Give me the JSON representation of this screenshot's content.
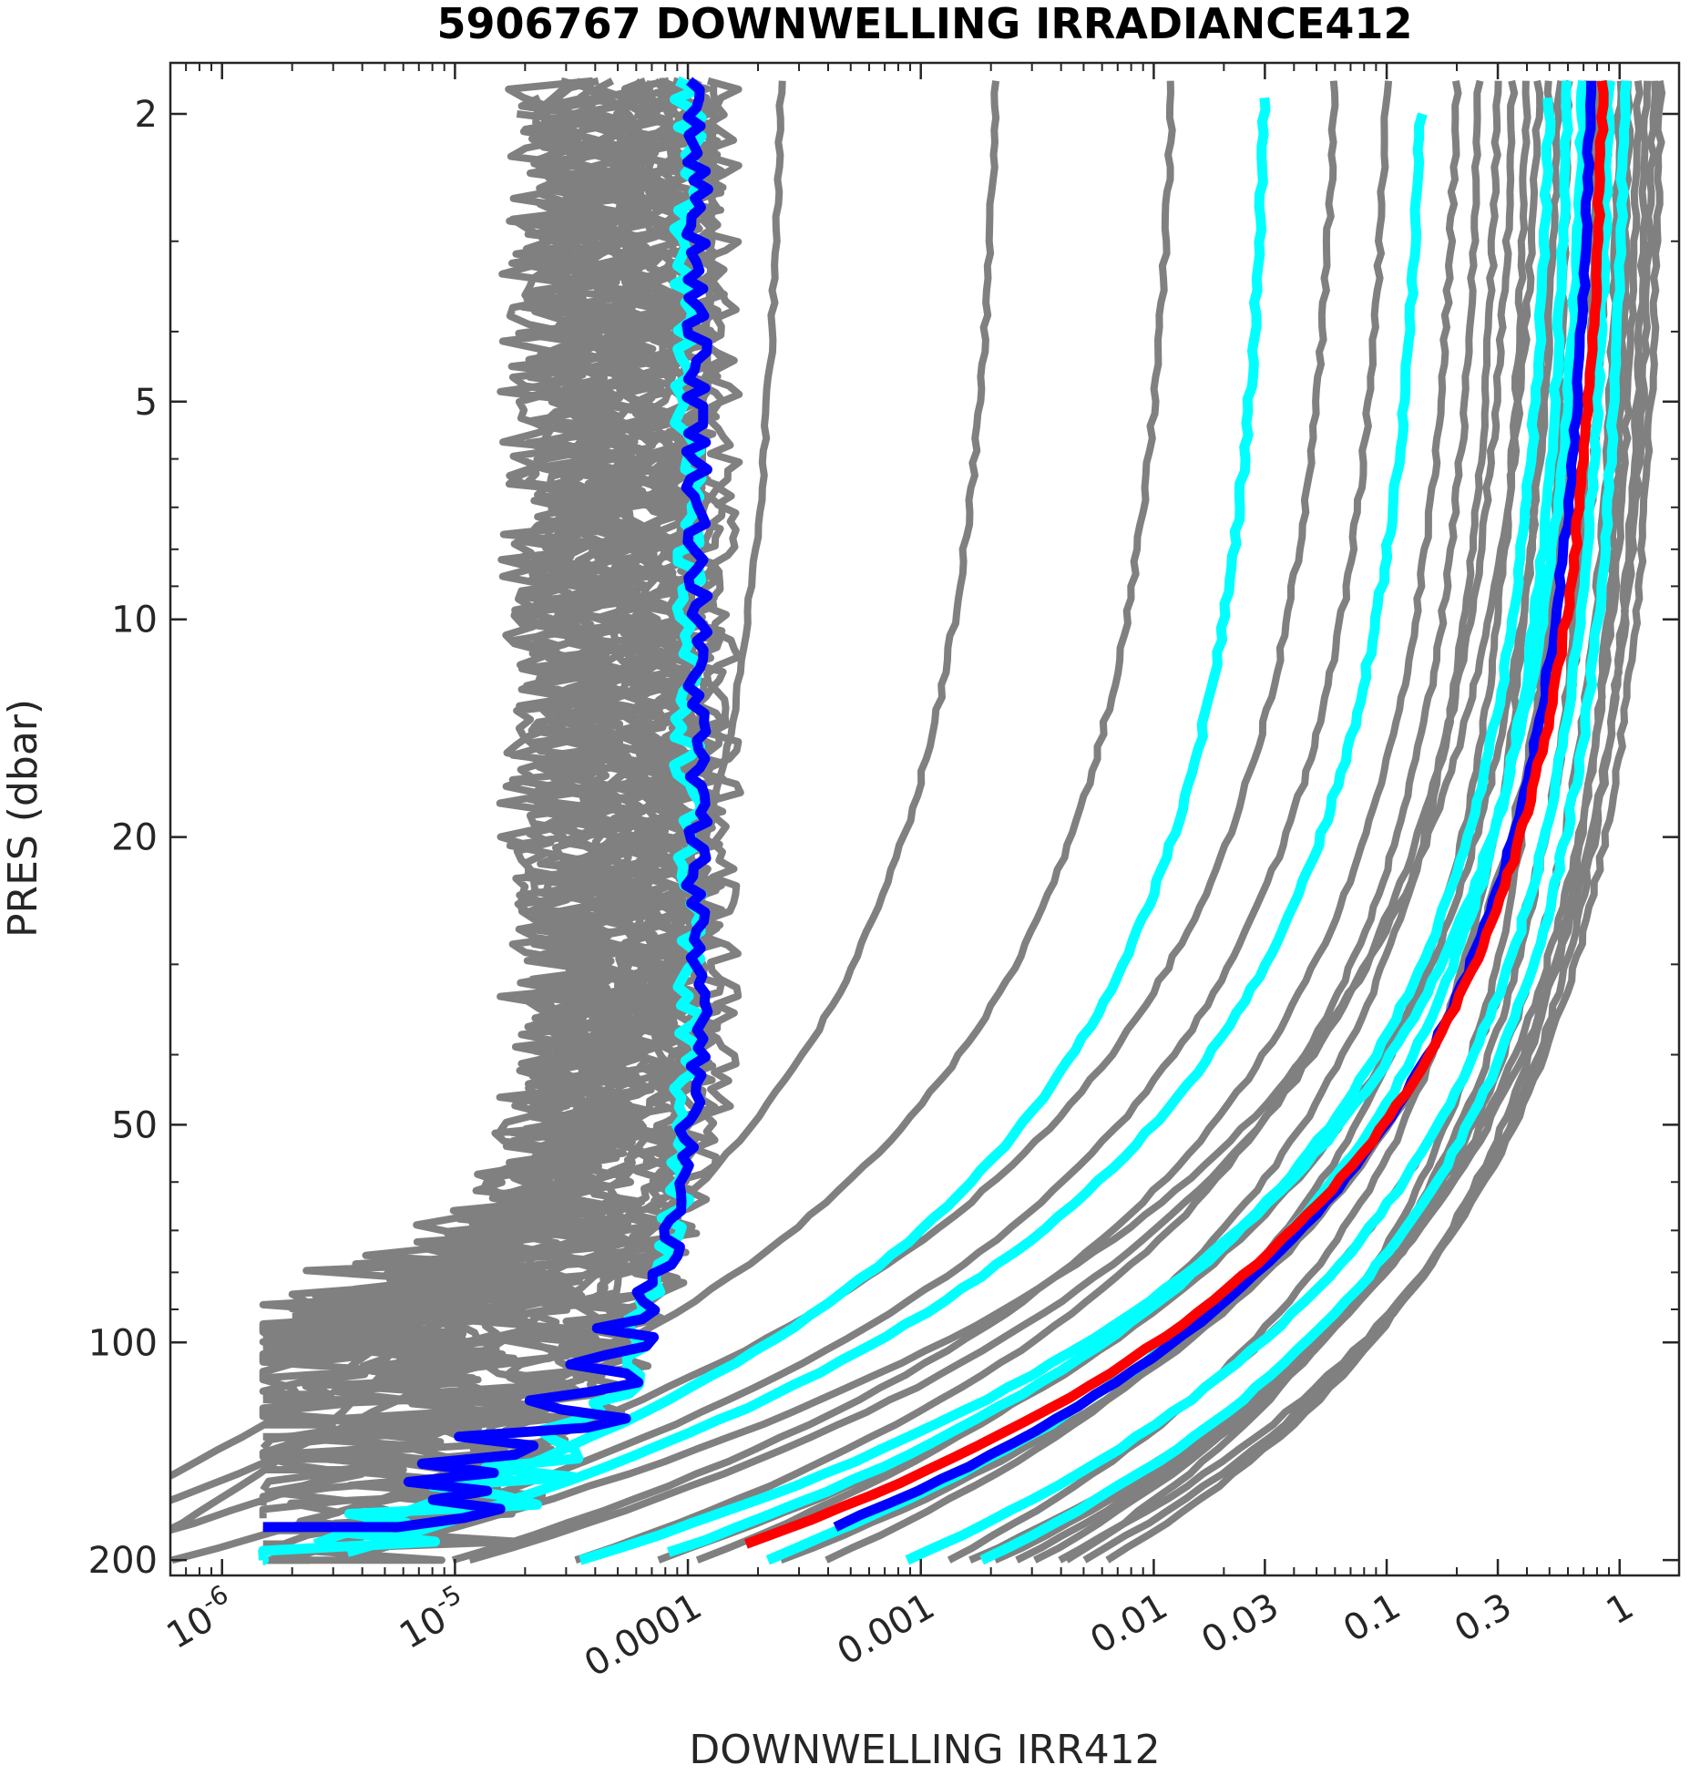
{
  "chart_data": {
    "type": "line",
    "title": "5906767  DOWNWELLING IRRADIANCE412",
    "xlabel": "DOWNWELLING IRR412",
    "ylabel": "PRES (dbar)",
    "x_scale": "log",
    "y_scale": "log",
    "y_reversed": true,
    "xlim": [
      6e-07,
      1.8
    ],
    "ylim": [
      1.7,
      210
    ],
    "grid": false,
    "x_ticks": [
      {
        "value": 1e-06,
        "base": "10",
        "exp": "-6"
      },
      {
        "value": 1e-05,
        "base": "10",
        "exp": "-5"
      },
      {
        "value": 0.0001,
        "label": "0.0001"
      },
      {
        "value": 0.001,
        "label": "0.001"
      },
      {
        "value": 0.01,
        "label": "0.01"
      },
      {
        "value": 0.03,
        "label": "0.03"
      },
      {
        "value": 0.1,
        "label": "0.1"
      },
      {
        "value": 0.3,
        "label": "0.3"
      },
      {
        "value": 1,
        "label": "1"
      }
    ],
    "y_ticks": [
      {
        "value": 2,
        "label": "2"
      },
      {
        "value": 5,
        "label": "5"
      },
      {
        "value": 10,
        "label": "10"
      },
      {
        "value": 20,
        "label": "20"
      },
      {
        "value": 50,
        "label": "50"
      },
      {
        "value": 100,
        "label": "100"
      },
      {
        "value": 200,
        "label": "200"
      }
    ],
    "series": [
      {
        "color": "#808080",
        "kind": "noise",
        "x0": 6e-05,
        "p0": 1.8,
        "pmax": 105,
        "xfloor": 1.5e-06,
        "jit": 0.25
      },
      {
        "color": "#808080",
        "kind": "noise",
        "x0": 5.5e-05,
        "p0": 1.8,
        "pmax": 100,
        "xfloor": 1.5e-06,
        "jit": 0.28
      },
      {
        "color": "#808080",
        "kind": "noise",
        "x0": 5e-05,
        "p0": 1.8,
        "pmax": 98,
        "xfloor": 1.5e-06,
        "jit": 0.3
      },
      {
        "color": "#808080",
        "kind": "noise",
        "x0": 4.5e-05,
        "p0": 1.9,
        "pmax": 92,
        "xfloor": 2e-06,
        "jit": 0.3
      },
      {
        "color": "#808080",
        "kind": "noise",
        "x0": 4e-05,
        "p0": 1.8,
        "pmax": 120,
        "xfloor": 1.5e-06,
        "jit": 0.32
      },
      {
        "color": "#808080",
        "kind": "noise",
        "x0": 3.5e-05,
        "p0": 1.9,
        "pmax": 112,
        "xfloor": 1.5e-06,
        "jit": 0.34
      },
      {
        "color": "#808080",
        "kind": "noise",
        "x0": 3e-05,
        "p0": 1.8,
        "pmax": 110,
        "xfloor": 1.5e-06,
        "jit": 0.36
      },
      {
        "color": "#808080",
        "kind": "noise",
        "x0": 2.7e-05,
        "p0": 1.9,
        "pmax": 125,
        "xfloor": 1.5e-06,
        "jit": 0.4
      },
      {
        "color": "#808080",
        "kind": "noise",
        "x0": 2.5e-05,
        "p0": 1.8,
        "pmax": 130,
        "xfloor": 1.5e-06,
        "jit": 0.42
      },
      {
        "color": "#808080",
        "kind": "noise",
        "x0": 6.5e-05,
        "p0": 1.8,
        "pmax": 102,
        "xfloor": 1.5e-06,
        "jit": 0.22
      },
      {
        "color": "#808080",
        "kind": "noise",
        "x0": 7e-05,
        "p0": 1.8,
        "pmax": 96,
        "xfloor": 1.5e-06,
        "jit": 0.2
      },
      {
        "color": "#808080",
        "kind": "noise",
        "x0": 8e-05,
        "p0": 1.9,
        "pmax": 90,
        "xfloor": 2e-06,
        "jit": 0.2
      },
      {
        "color": "#808080",
        "kind": "noise",
        "x0": 9e-05,
        "p0": 1.8,
        "pmax": 95,
        "xfloor": 2e-06,
        "jit": 0.18
      },
      {
        "color": "#808080",
        "kind": "noise",
        "x0": 0.0001,
        "p0": 1.8,
        "pmax": 105,
        "xfloor": 1.5e-06,
        "jit": 0.18
      },
      {
        "color": "#808080",
        "kind": "noise",
        "x0": 0.00012,
        "p0": 1.8,
        "pmax": 118,
        "xfloor": 1.5e-06,
        "jit": 0.16
      },
      {
        "color": "#808080",
        "kind": "noise",
        "x0": 0.00014,
        "p0": 1.8,
        "pmax": 135,
        "xfloor": 1.5e-06,
        "jit": 0.16
      },
      {
        "color": "#808080",
        "kind": "noise",
        "x0": 5e-05,
        "p0": 1.8,
        "pmax": 140,
        "xfloor": 1.5e-06,
        "jit": 0.3
      },
      {
        "color": "#808080",
        "kind": "noise",
        "x0": 4e-05,
        "p0": 1.9,
        "pmax": 150,
        "xfloor": 1.5e-06,
        "jit": 0.3
      },
      {
        "color": "#808080",
        "kind": "noise",
        "x0": 3.2e-05,
        "p0": 1.8,
        "pmax": 160,
        "xfloor": 1.5e-06,
        "jit": 0.35
      },
      {
        "color": "#808080",
        "kind": "noise",
        "x0": 2.6e-05,
        "p0": 2.0,
        "pmax": 175,
        "xfloor": 1.5e-06,
        "jit": 0.35
      },
      {
        "color": "#808080",
        "kind": "noise",
        "x0": 6e-05,
        "p0": 1.8,
        "pmax": 190,
        "xfloor": 1.5e-06,
        "jit": 0.25
      },
      {
        "color": "#808080",
        "kind": "noise",
        "x0": 8.5e-05,
        "p0": 1.8,
        "pmax": 200,
        "xfloor": 1.5e-06,
        "jit": 0.22
      },
      {
        "color": "#808080",
        "kind": "noise",
        "x0": 0.00011,
        "p0": 1.8,
        "pmax": 145,
        "xfloor": 1.5e-06,
        "jit": 0.2
      },
      {
        "color": "#808080",
        "kind": "noise",
        "x0": 7.5e-05,
        "p0": 1.9,
        "pmax": 168,
        "xfloor": 1.5e-06,
        "jit": 0.24
      },
      {
        "color": "#808080",
        "kind": "noise",
        "x0": 3.8e-05,
        "p0": 1.8,
        "pmax": 182,
        "xfloor": 1.5e-06,
        "jit": 0.3
      },
      {
        "color": "#808080",
        "kind": "noise",
        "x0": 9.5e-05,
        "p0": 1.8,
        "pmax": 200,
        "xfloor": 1.5e-06,
        "jit": 0.2
      },
      {
        "color": "#808080",
        "kind": "smooth",
        "x0": 0.00013,
        "p0": 1.8,
        "k": 0.03,
        "pmax": 200
      },
      {
        "color": "#808080",
        "kind": "smooth",
        "x0": 0.00025,
        "p0": 1.8,
        "k": 0.04,
        "pmax": 200
      },
      {
        "color": "#808080",
        "kind": "smooth",
        "x0": 0.0021,
        "p0": 1.8,
        "k": 0.05,
        "pmax": 200
      },
      {
        "color": "#808080",
        "kind": "smooth",
        "x0": 0.012,
        "p0": 1.8,
        "k": 0.055,
        "pmax": 200
      },
      {
        "color": "#808080",
        "kind": "smooth",
        "x0": 0.06,
        "p0": 1.8,
        "k": 0.058,
        "pmax": 200
      },
      {
        "color": "#808080",
        "kind": "smooth",
        "x0": 0.1,
        "p0": 1.8,
        "k": 0.055,
        "pmax": 200
      },
      {
        "color": "#808080",
        "kind": "smooth",
        "x0": 0.2,
        "p0": 1.8,
        "k": 0.05,
        "pmax": 200
      },
      {
        "color": "#808080",
        "kind": "smooth",
        "x0": 0.25,
        "p0": 1.8,
        "k": 0.045,
        "pmax": 200
      },
      {
        "color": "#808080",
        "kind": "smooth",
        "x0": 0.3,
        "p0": 1.8,
        "k": 0.04,
        "pmax": 200
      },
      {
        "color": "#808080",
        "kind": "smooth",
        "x0": 0.35,
        "p0": 1.8,
        "k": 0.052,
        "pmax": 200
      },
      {
        "color": "#808080",
        "kind": "smooth",
        "x0": 0.4,
        "p0": 1.8,
        "k": 0.035,
        "pmax": 200
      },
      {
        "color": "#808080",
        "kind": "smooth",
        "x0": 0.45,
        "p0": 1.8,
        "k": 0.06,
        "pmax": 200
      },
      {
        "color": "#808080",
        "kind": "smooth",
        "x0": 0.5,
        "p0": 1.8,
        "k": 0.03,
        "pmax": 200
      },
      {
        "color": "#808080",
        "kind": "smooth",
        "x0": 0.55,
        "p0": 1.8,
        "k": 0.045,
        "pmax": 200
      },
      {
        "color": "#808080",
        "kind": "smooth",
        "x0": 0.6,
        "p0": 1.8,
        "k": 0.025,
        "pmax": 200
      },
      {
        "color": "#808080",
        "kind": "smooth",
        "x0": 0.7,
        "p0": 1.8,
        "k": 0.04,
        "pmax": 200
      },
      {
        "color": "#808080",
        "kind": "smooth",
        "x0": 0.8,
        "p0": 1.8,
        "k": 0.028,
        "pmax": 200
      },
      {
        "color": "#808080",
        "kind": "smooth",
        "x0": 0.9,
        "p0": 1.8,
        "k": 0.035,
        "pmax": 200
      },
      {
        "color": "#808080",
        "kind": "smooth",
        "x0": 1.0,
        "p0": 1.8,
        "k": 0.03,
        "pmax": 200
      },
      {
        "color": "#808080",
        "kind": "smooth",
        "x0": 1.1,
        "p0": 1.8,
        "k": 0.026,
        "pmax": 200
      },
      {
        "color": "#808080",
        "kind": "smooth",
        "x0": 1.2,
        "p0": 1.8,
        "k": 0.032,
        "pmax": 200
      },
      {
        "color": "#808080",
        "kind": "smooth",
        "x0": 1.3,
        "p0": 1.8,
        "k": 0.028,
        "pmax": 200
      },
      {
        "color": "#808080",
        "kind": "smooth",
        "x0": 1.4,
        "p0": 1.8,
        "k": 0.034,
        "pmax": 200
      },
      {
        "color": "#808080",
        "kind": "smooth",
        "x0": 1.5,
        "p0": 1.8,
        "k": 0.03,
        "pmax": 200
      },
      {
        "color": "#00ffff",
        "kind": "noise",
        "x0": 0.0001,
        "p0": 1.8,
        "pmax": 200,
        "xfloor": 1.5e-06,
        "jit": 0.12
      },
      {
        "color": "#00ffff",
        "kind": "smooth",
        "x0": 0.03,
        "p0": 1.9,
        "k": 0.05,
        "pmax": 190
      },
      {
        "color": "#00ffff",
        "kind": "smooth",
        "x0": 0.14,
        "p0": 2.0,
        "k": 0.055,
        "pmax": 195
      },
      {
        "color": "#00ffff",
        "kind": "smooth",
        "x0": 0.5,
        "p0": 1.9,
        "k": 0.045,
        "pmax": 195
      },
      {
        "color": "#00ffff",
        "kind": "smooth",
        "x0": 0.6,
        "p0": 1.8,
        "k": 0.04,
        "pmax": 200
      },
      {
        "color": "#00ffff",
        "kind": "smooth",
        "x0": 0.9,
        "p0": 1.8,
        "k": 0.035,
        "pmax": 200
      },
      {
        "color": "#00ffff",
        "kind": "smooth",
        "x0": 1.05,
        "p0": 1.8,
        "k": 0.032,
        "pmax": 200
      },
      {
        "color": "#00ffff",
        "kind": "smooth",
        "x0": 0.7,
        "p0": 1.8,
        "k": 0.05,
        "pmax": 200
      },
      {
        "color": "#0000ff",
        "kind": "noise",
        "x0": 0.00011,
        "p0": 1.8,
        "pmax": 180,
        "xfloor": 1.5e-06,
        "jit": 0.1
      },
      {
        "color": "#0000ff",
        "kind": "smooth",
        "x0": 0.75,
        "p0": 1.8,
        "k": 0.042,
        "pmax": 180
      },
      {
        "color": "#ff0000",
        "kind": "smooth",
        "x0": 0.85,
        "p0": 1.8,
        "k": 0.045,
        "pmax": 190
      }
    ]
  }
}
